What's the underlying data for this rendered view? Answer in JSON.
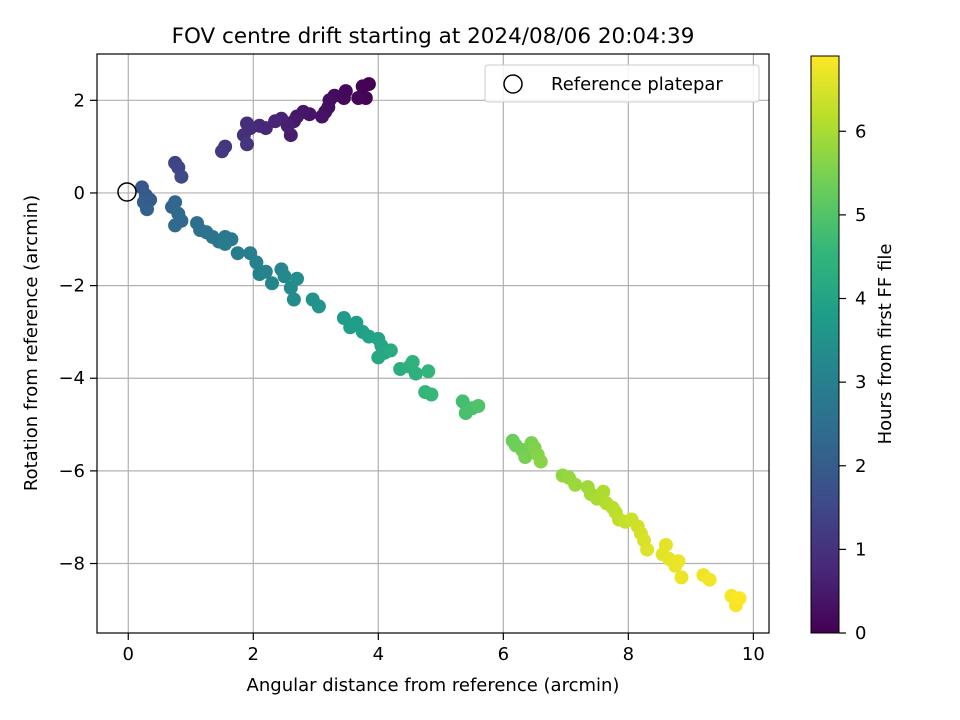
{
  "chart_data": {
    "type": "scatter",
    "title": "FOV centre drift starting at 2024/08/06 20:04:39",
    "xlabel": "Angular distance from reference (arcmin)",
    "ylabel": "Rotation from reference (arcmin)",
    "xlim": [
      -0.5,
      10.25
    ],
    "ylim": [
      -9.5,
      3.0
    ],
    "xticks": [
      0,
      2,
      4,
      6,
      8,
      10
    ],
    "yticks": [
      2,
      0,
      -2,
      -4,
      -6,
      -8
    ],
    "xtick_labels": [
      "0",
      "2",
      "4",
      "6",
      "8",
      "10"
    ],
    "ytick_labels": [
      "2",
      "0",
      "−2",
      "−4",
      "−6",
      "−8"
    ],
    "grid": true,
    "legend": {
      "position": "top-right",
      "entries": [
        "Reference platepar"
      ]
    },
    "reference_point": {
      "x": 0,
      "y": 0,
      "label": "Reference platepar"
    },
    "colorbar": {
      "label": "Hours from first FF file",
      "range": [
        0,
        6.9
      ],
      "ticks": [
        0,
        1,
        2,
        3,
        4,
        5,
        6
      ],
      "tick_labels": [
        "0",
        "1",
        "2",
        "3",
        "4",
        "5",
        "6"
      ],
      "colormap": "viridis",
      "colors": [
        "#440154",
        "#482878",
        "#3e4a89",
        "#31688e",
        "#26828e",
        "#1f9e89",
        "#35b779",
        "#6ece58",
        "#b5de2b",
        "#fde725"
      ]
    },
    "series": [
      {
        "points": [
          [
            3.85,
            2.35
          ],
          [
            3.75,
            2.3
          ],
          [
            3.8,
            2.05
          ],
          [
            3.68,
            2.05
          ],
          [
            3.48,
            2.2
          ],
          [
            3.45,
            2.05
          ],
          [
            3.3,
            2.1
          ],
          [
            3.22,
            2.0
          ],
          [
            3.2,
            1.85
          ],
          [
            3.15,
            1.75
          ],
          [
            3.1,
            1.65
          ],
          [
            2.9,
            1.7
          ],
          [
            2.8,
            1.75
          ],
          [
            2.7,
            1.65
          ],
          [
            2.65,
            1.55
          ],
          [
            2.6,
            1.25
          ],
          [
            2.55,
            1.45
          ],
          [
            2.45,
            1.6
          ],
          [
            2.35,
            1.55
          ],
          [
            2.2,
            1.4
          ],
          [
            2.1,
            1.45
          ],
          [
            1.95,
            1.4
          ],
          [
            1.9,
            1.5
          ],
          [
            1.85,
            1.25
          ],
          [
            1.9,
            1.05
          ],
          [
            1.55,
            1.0
          ],
          [
            1.5,
            0.9
          ],
          [
            0.75,
            0.65
          ],
          [
            0.8,
            0.55
          ],
          [
            0.85,
            0.35
          ],
          [
            0.22,
            0.12
          ],
          [
            0.28,
            -0.05
          ],
          [
            0.35,
            -0.15
          ],
          [
            0.25,
            -0.2
          ],
          [
            0.3,
            -0.35
          ],
          [
            0.7,
            -0.3
          ],
          [
            0.75,
            -0.2
          ],
          [
            0.8,
            -0.45
          ],
          [
            0.85,
            -0.6
          ],
          [
            0.75,
            -0.7
          ],
          [
            1.1,
            -0.65
          ],
          [
            1.15,
            -0.8
          ],
          [
            1.25,
            -0.85
          ],
          [
            1.35,
            -0.95
          ],
          [
            1.45,
            -1.05
          ],
          [
            1.55,
            -0.95
          ],
          [
            1.65,
            -1.0
          ],
          [
            1.75,
            -1.3
          ],
          [
            1.55,
            -1.1
          ],
          [
            1.95,
            -1.3
          ],
          [
            2.05,
            -1.5
          ],
          [
            2.1,
            -1.75
          ],
          [
            2.2,
            -1.7
          ],
          [
            2.3,
            -1.95
          ],
          [
            2.45,
            -1.65
          ],
          [
            2.5,
            -1.8
          ],
          [
            2.6,
            -2.05
          ],
          [
            2.65,
            -2.3
          ],
          [
            2.7,
            -1.85
          ],
          [
            2.95,
            -2.3
          ],
          [
            3.05,
            -2.45
          ],
          [
            3.45,
            -2.7
          ],
          [
            3.55,
            -2.9
          ],
          [
            3.65,
            -2.8
          ],
          [
            3.75,
            -3.0
          ],
          [
            3.85,
            -3.1
          ],
          [
            4.0,
            -3.15
          ],
          [
            4.05,
            -3.3
          ],
          [
            4.1,
            -3.45
          ],
          [
            4.0,
            -3.55
          ],
          [
            4.2,
            -3.4
          ],
          [
            4.35,
            -3.8
          ],
          [
            4.5,
            -3.75
          ],
          [
            4.6,
            -3.9
          ],
          [
            4.55,
            -3.65
          ],
          [
            4.8,
            -3.85
          ],
          [
            4.75,
            -4.3
          ],
          [
            4.85,
            -4.35
          ],
          [
            5.35,
            -4.5
          ],
          [
            5.4,
            -4.75
          ],
          [
            5.5,
            -4.65
          ],
          [
            5.6,
            -4.6
          ],
          [
            6.15,
            -5.35
          ],
          [
            6.2,
            -5.45
          ],
          [
            6.3,
            -5.55
          ],
          [
            6.35,
            -5.7
          ],
          [
            6.45,
            -5.4
          ],
          [
            6.5,
            -5.5
          ],
          [
            6.55,
            -5.65
          ],
          [
            6.6,
            -5.8
          ],
          [
            6.95,
            -6.1
          ],
          [
            7.05,
            -6.15
          ],
          [
            7.15,
            -6.3
          ],
          [
            7.35,
            -6.35
          ],
          [
            7.4,
            -6.5
          ],
          [
            7.5,
            -6.6
          ],
          [
            7.6,
            -6.45
          ],
          [
            7.65,
            -6.7
          ],
          [
            7.75,
            -6.8
          ],
          [
            7.8,
            -6.9
          ],
          [
            7.85,
            -7.05
          ],
          [
            7.95,
            -7.1
          ],
          [
            8.05,
            -7.05
          ],
          [
            8.15,
            -7.2
          ],
          [
            8.2,
            -7.35
          ],
          [
            8.25,
            -7.5
          ],
          [
            8.3,
            -7.7
          ],
          [
            8.55,
            -7.8
          ],
          [
            8.6,
            -7.6
          ],
          [
            8.65,
            -7.9
          ],
          [
            8.75,
            -8.05
          ],
          [
            8.8,
            -7.95
          ],
          [
            8.85,
            -8.3
          ],
          [
            9.2,
            -8.25
          ],
          [
            9.3,
            -8.35
          ],
          [
            9.65,
            -8.7
          ],
          [
            9.72,
            -8.9
          ],
          [
            9.78,
            -8.75
          ]
        ],
        "hours": [
          0.02,
          0.05,
          0.08,
          0.1,
          0.15,
          0.18,
          0.22,
          0.25,
          0.28,
          0.3,
          0.33,
          0.38,
          0.42,
          0.46,
          0.5,
          0.55,
          0.6,
          0.65,
          0.7,
          0.75,
          0.8,
          0.85,
          0.9,
          0.95,
          1.05,
          1.1,
          1.15,
          1.4,
          1.45,
          1.5,
          1.9,
          1.95,
          2.0,
          2.05,
          2.1,
          2.2,
          2.25,
          2.3,
          2.35,
          2.4,
          2.5,
          2.55,
          2.6,
          2.65,
          2.7,
          2.75,
          2.8,
          2.85,
          2.9,
          2.95,
          3.0,
          3.05,
          3.1,
          3.15,
          3.2,
          3.25,
          3.3,
          3.35,
          3.4,
          3.5,
          3.55,
          3.75,
          3.8,
          3.85,
          3.9,
          3.95,
          4.0,
          4.05,
          4.1,
          4.15,
          4.2,
          4.3,
          4.35,
          4.4,
          4.45,
          4.5,
          4.55,
          4.6,
          4.8,
          4.85,
          4.9,
          4.95,
          5.3,
          5.35,
          5.4,
          5.45,
          5.5,
          5.55,
          5.6,
          5.65,
          5.75,
          5.8,
          5.85,
          5.9,
          5.95,
          6.0,
          6.05,
          6.1,
          6.15,
          6.2,
          6.25,
          6.3,
          6.35,
          6.4,
          6.45,
          6.5,
          6.55,
          6.6,
          6.62,
          6.65,
          6.68,
          6.7,
          6.72,
          6.75,
          6.78,
          6.82,
          6.85,
          6.88
        ]
      }
    ]
  }
}
